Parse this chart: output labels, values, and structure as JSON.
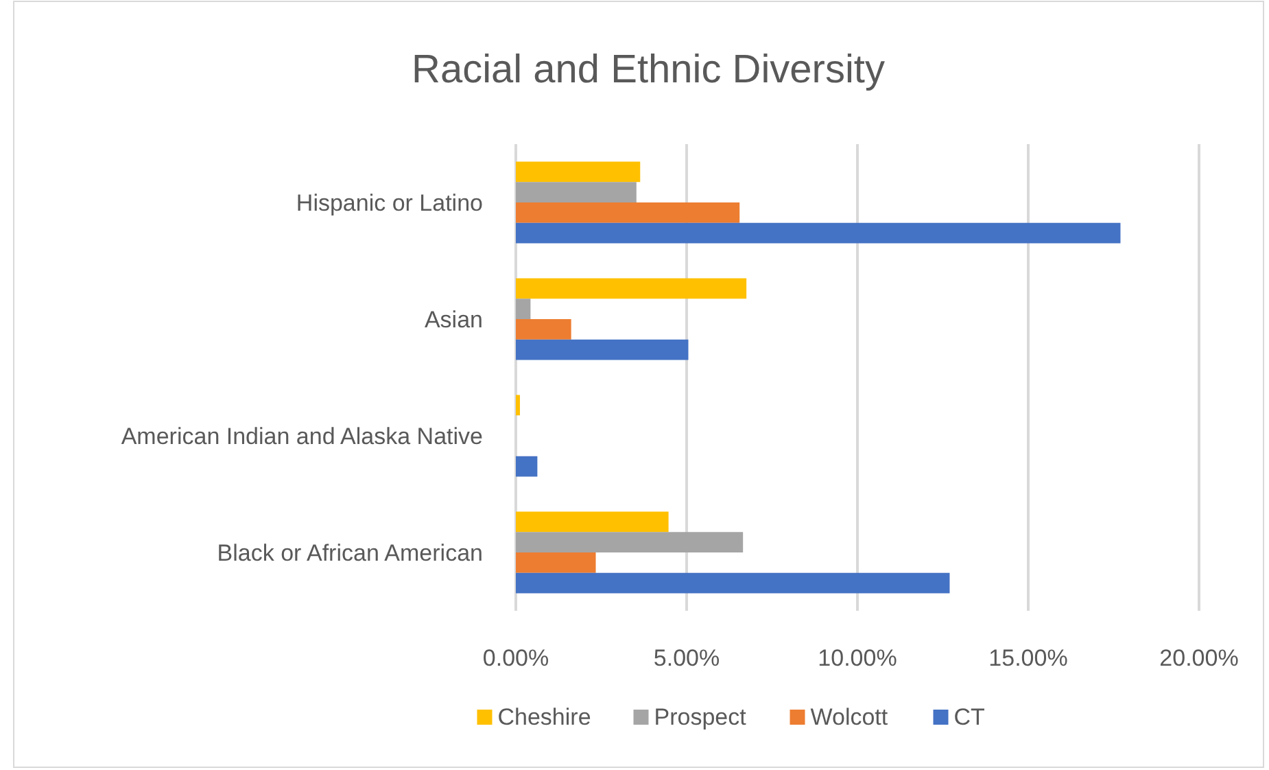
{
  "chart_data": {
    "type": "bar",
    "orientation": "horizontal",
    "title": "Racial and Ethnic Diversity",
    "categories": [
      "Hispanic or Latino",
      "Asian",
      "American Indian and Alaska Native",
      "Black or African American"
    ],
    "series": [
      {
        "name": "Cheshire",
        "color": "#ffc000",
        "values": [
          3.64,
          6.75,
          0.12,
          4.47
        ]
      },
      {
        "name": "Prospect",
        "color": "#a5a5a5",
        "values": [
          3.53,
          0.43,
          0,
          6.65
        ]
      },
      {
        "name": "Wolcott",
        "color": "#ed7d31",
        "values": [
          6.55,
          1.62,
          0,
          2.34
        ]
      },
      {
        "name": "CT",
        "color": "#4472c4",
        "values": [
          17.7,
          5.05,
          0.63,
          12.7
        ]
      }
    ],
    "xlim": [
      0,
      20
    ],
    "xticks": [
      {
        "value": 0,
        "label": "0.00%"
      },
      {
        "value": 5,
        "label": "5.00%"
      },
      {
        "value": 10,
        "label": "10.00%"
      },
      {
        "value": 15,
        "label": "15.00%"
      },
      {
        "value": 20,
        "label": "20.00%"
      }
    ],
    "grid": "x",
    "legend": "bottom"
  }
}
